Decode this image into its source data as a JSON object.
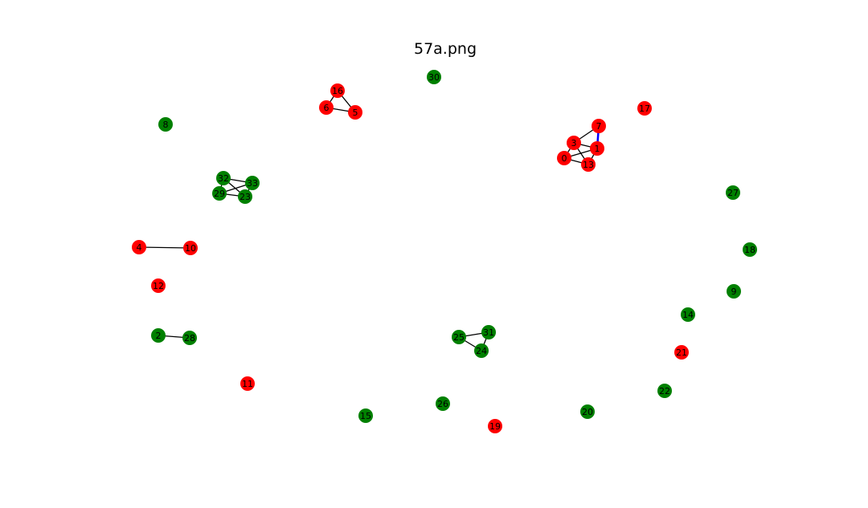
{
  "title": "57a.png",
  "colors": {
    "red": "#ff0000",
    "green": "#008000",
    "edge_default": "#000000",
    "edge_highlight": "#0000ff"
  },
  "nodes": [
    {
      "id": "0",
      "color": "red"
    },
    {
      "id": "1",
      "color": "red"
    },
    {
      "id": "2",
      "color": "green"
    },
    {
      "id": "3",
      "color": "red"
    },
    {
      "id": "4",
      "color": "red"
    },
    {
      "id": "5",
      "color": "red"
    },
    {
      "id": "6",
      "color": "red"
    },
    {
      "id": "7",
      "color": "red"
    },
    {
      "id": "8",
      "color": "green"
    },
    {
      "id": "9",
      "color": "green"
    },
    {
      "id": "10",
      "color": "red"
    },
    {
      "id": "11",
      "color": "red"
    },
    {
      "id": "12",
      "color": "red"
    },
    {
      "id": "13",
      "color": "red"
    },
    {
      "id": "14",
      "color": "green"
    },
    {
      "id": "15",
      "color": "green"
    },
    {
      "id": "16",
      "color": "red"
    },
    {
      "id": "17",
      "color": "red"
    },
    {
      "id": "18",
      "color": "green"
    },
    {
      "id": "19",
      "color": "red"
    },
    {
      "id": "20",
      "color": "green"
    },
    {
      "id": "21",
      "color": "red"
    },
    {
      "id": "22",
      "color": "green"
    },
    {
      "id": "23",
      "color": "green"
    },
    {
      "id": "24",
      "color": "green"
    },
    {
      "id": "25",
      "color": "green"
    },
    {
      "id": "26",
      "color": "green"
    },
    {
      "id": "27",
      "color": "green"
    },
    {
      "id": "28",
      "color": "green"
    },
    {
      "id": "29",
      "color": "green"
    },
    {
      "id": "30",
      "color": "green"
    },
    {
      "id": "31",
      "color": "green"
    },
    {
      "id": "32",
      "color": "green"
    },
    {
      "id": "33",
      "color": "green"
    }
  ],
  "edges": [
    {
      "source": "16",
      "target": "6",
      "highlight": false
    },
    {
      "source": "16",
      "target": "5",
      "highlight": false
    },
    {
      "source": "6",
      "target": "5",
      "highlight": false
    },
    {
      "source": "7",
      "target": "1",
      "highlight": true
    },
    {
      "source": "7",
      "target": "3",
      "highlight": false
    },
    {
      "source": "3",
      "target": "1",
      "highlight": false
    },
    {
      "source": "3",
      "target": "0",
      "highlight": false
    },
    {
      "source": "3",
      "target": "13",
      "highlight": false
    },
    {
      "source": "0",
      "target": "1",
      "highlight": false
    },
    {
      "source": "0",
      "target": "13",
      "highlight": false
    },
    {
      "source": "13",
      "target": "1",
      "highlight": false
    },
    {
      "source": "32",
      "target": "33",
      "highlight": false
    },
    {
      "source": "32",
      "target": "29",
      "highlight": false
    },
    {
      "source": "32",
      "target": "23",
      "highlight": false
    },
    {
      "source": "33",
      "target": "29",
      "highlight": false
    },
    {
      "source": "33",
      "target": "23",
      "highlight": false
    },
    {
      "source": "29",
      "target": "23",
      "highlight": false
    },
    {
      "source": "4",
      "target": "10",
      "highlight": false
    },
    {
      "source": "2",
      "target": "28",
      "highlight": false
    },
    {
      "source": "25",
      "target": "31",
      "highlight": false
    },
    {
      "source": "25",
      "target": "24",
      "highlight": false
    },
    {
      "source": "31",
      "target": "24",
      "highlight": false
    }
  ]
}
